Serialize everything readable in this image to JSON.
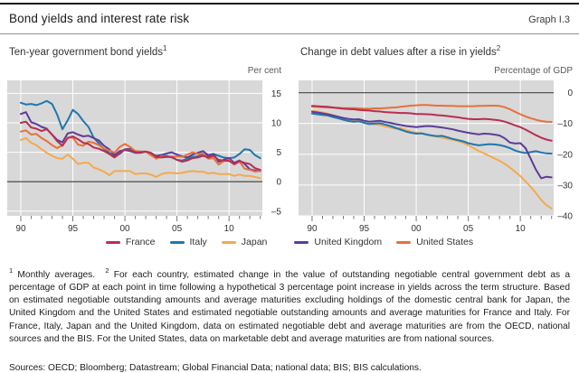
{
  "header": {
    "title": "Bond yields and interest rate risk",
    "graph_label": "Graph I.3"
  },
  "colors": {
    "plot_bg": "#d8d8d8",
    "grid": "#ffffff",
    "zero_line": "#55585a",
    "tick": "#767676",
    "axis_text": "#333333",
    "france": "#b82e51",
    "italy": "#2077ad",
    "japan": "#f5a94e",
    "united_kingdom": "#5c3d99",
    "united_states": "#e8703a"
  },
  "chart_data": [
    {
      "type": "line",
      "title": "Ten-year government bond yields",
      "title_sup": "1",
      "unit_label": "Per cent",
      "ylim": [
        -5.8,
        17.2
      ],
      "yticks": [
        {
          "v": -5,
          "l": "–5"
        },
        {
          "v": 0,
          "l": "0"
        },
        {
          "v": 5,
          "l": "5"
        },
        {
          "v": 10,
          "l": "10"
        },
        {
          "v": 15,
          "l": "15"
        }
      ],
      "zero_line": 0,
      "grid": "on",
      "legend_position": "bottom",
      "xlim": [
        1988.7,
        2013.2
      ],
      "xticks": [
        {
          "v": 1990,
          "l": "90"
        },
        {
          "v": 1995,
          "l": "95"
        },
        {
          "v": 2000,
          "l": "00"
        },
        {
          "v": 2005,
          "l": "05"
        },
        {
          "v": 2010,
          "l": "10"
        }
      ],
      "minor_ticks": {
        "start": 1990,
        "end": 2013,
        "step": 1
      },
      "series": [
        {
          "name": "Italy",
          "color_key": "italy",
          "start": 1990,
          "step": 0.5,
          "values": [
            13.4,
            13.1,
            13.2,
            13.0,
            13.3,
            13.7,
            13.2,
            11.4,
            8.9,
            10.4,
            12.2,
            11.5,
            10.3,
            9.3,
            7.5,
            6.5,
            5.5,
            4.9,
            4.3,
            4.7,
            5.5,
            5.6,
            5.2,
            5.1,
            5.1,
            4.9,
            4.3,
            4.3,
            4.4,
            4.1,
            3.7,
            3.6,
            3.9,
            4.2,
            4.3,
            4.6,
            4.4,
            4.7,
            4.4,
            4.1,
            4.0,
            4.1,
            4.7,
            5.5,
            5.4,
            4.5,
            4.0
          ]
        },
        {
          "name": "Japan",
          "color_key": "japan",
          "start": 1990,
          "step": 0.5,
          "values": [
            7.1,
            7.4,
            6.6,
            6.2,
            5.5,
            4.9,
            4.4,
            4.0,
            3.9,
            4.6,
            3.9,
            3.0,
            3.2,
            3.2,
            2.4,
            2.1,
            1.7,
            1.1,
            1.8,
            1.8,
            1.8,
            1.8,
            1.3,
            1.4,
            1.4,
            1.2,
            0.8,
            1.3,
            1.5,
            1.5,
            1.4,
            1.5,
            1.7,
            1.8,
            1.7,
            1.7,
            1.4,
            1.5,
            1.3,
            1.3,
            1.3,
            1.0,
            1.2,
            1.0,
            1.0,
            0.8,
            0.6
          ]
        },
        {
          "name": "United Kingdom",
          "color_key": "united_kingdom",
          "start": 1990,
          "step": 0.5,
          "values": [
            11.5,
            11.8,
            10.1,
            9.8,
            9.3,
            9.0,
            8.0,
            7.1,
            6.7,
            8.2,
            8.4,
            8.0,
            7.7,
            7.8,
            7.4,
            7.0,
            6.1,
            5.5,
            4.5,
            5.2,
            5.4,
            5.2,
            4.9,
            4.9,
            5.1,
            4.7,
            4.4,
            4.5,
            4.8,
            5.0,
            4.6,
            4.3,
            4.1,
            4.6,
            4.9,
            5.2,
            4.5,
            4.7,
            3.4,
            3.7,
            4.0,
            3.2,
            3.6,
            3.0,
            2.1,
            1.9,
            1.8
          ]
        },
        {
          "name": "United States",
          "color_key": "united_states",
          "start": 1990,
          "step": 0.5,
          "values": [
            8.5,
            8.7,
            8.0,
            8.1,
            7.4,
            6.9,
            6.2,
            5.7,
            6.2,
            7.5,
            7.5,
            6.3,
            6.1,
            6.8,
            6.6,
            6.2,
            5.6,
            5.3,
            4.9,
            5.9,
            6.4,
            5.9,
            5.2,
            5.1,
            5.1,
            4.5,
            3.9,
            4.3,
            4.2,
            4.2,
            4.3,
            4.2,
            4.6,
            5.0,
            4.7,
            4.8,
            3.9,
            4.0,
            2.9,
            3.5,
            3.7,
            2.9,
            3.4,
            2.2,
            2.0,
            1.7,
            1.9
          ]
        },
        {
          "name": "France",
          "color_key": "france",
          "start": 1990,
          "step": 0.5,
          "values": [
            10.0,
            10.2,
            9.2,
            9.0,
            8.6,
            8.9,
            8.0,
            6.9,
            6.1,
            7.4,
            7.7,
            7.2,
            6.6,
            6.4,
            5.8,
            5.6,
            5.2,
            4.7,
            4.1,
            4.8,
            5.5,
            5.4,
            5.0,
            5.0,
            5.1,
            4.9,
            4.2,
            4.1,
            4.2,
            4.2,
            3.7,
            3.4,
            3.6,
            4.0,
            4.1,
            4.4,
            4.1,
            4.4,
            3.7,
            3.6,
            3.5,
            3.0,
            3.5,
            3.2,
            3.0,
            2.3,
            2.0
          ]
        }
      ]
    },
    {
      "type": "line",
      "title": "Change in debt values after a rise in yields",
      "title_sup": "2",
      "unit_label": "Percentage of GDP",
      "ylim": [
        -40,
        4
      ],
      "yticks": [
        {
          "v": 0,
          "l": "0"
        },
        {
          "v": -10,
          "l": "–10"
        },
        {
          "v": -20,
          "l": "–20"
        },
        {
          "v": -30,
          "l": "–30"
        },
        {
          "v": -40,
          "l": "–40"
        }
      ],
      "zero_line": 0,
      "grid": "on",
      "legend_position": "bottom",
      "xlim": [
        1988.7,
        2013.2
      ],
      "xticks": [
        {
          "v": 1990,
          "l": "90"
        },
        {
          "v": 1995,
          "l": "95"
        },
        {
          "v": 2000,
          "l": "00"
        },
        {
          "v": 2005,
          "l": "05"
        },
        {
          "v": 2010,
          "l": "10"
        }
      ],
      "minor_ticks": {
        "start": 1990,
        "end": 2013,
        "step": 1
      },
      "series": [
        {
          "name": "Japan",
          "color_key": "japan",
          "start": 1990,
          "step": 0.5,
          "values": [
            -5.9,
            -6.1,
            -6.4,
            -6.8,
            -7.3,
            -7.8,
            -8.3,
            -8.7,
            -9.0,
            -9.2,
            -9.7,
            -10.1,
            -10.3,
            -10.5,
            -10.9,
            -11.3,
            -11.7,
            -11.5,
            -12.1,
            -12.6,
            -13.0,
            -13.2,
            -13.6,
            -14.0,
            -14.3,
            -14.6,
            -15.0,
            -15.3,
            -15.7,
            -16.3,
            -17.1,
            -18.0,
            -18.9,
            -19.7,
            -20.5,
            -21.3,
            -22.1,
            -23.1,
            -24.3,
            -25.7,
            -27.1,
            -28.8,
            -30.6,
            -32.6,
            -34.8,
            -36.5,
            -37.6
          ]
        },
        {
          "name": "Italy",
          "color_key": "italy",
          "start": 1990,
          "step": 0.5,
          "values": [
            -6.8,
            -7.0,
            -7.2,
            -7.4,
            -7.9,
            -8.3,
            -8.8,
            -9.2,
            -9.4,
            -9.3,
            -9.8,
            -10.2,
            -10.0,
            -9.9,
            -10.3,
            -10.8,
            -11.4,
            -12.0,
            -12.6,
            -13.0,
            -13.3,
            -13.2,
            -13.6,
            -13.9,
            -14.1,
            -14.0,
            -14.5,
            -15.0,
            -15.4,
            -15.8,
            -16.4,
            -16.8,
            -17.1,
            -16.9,
            -16.7,
            -16.8,
            -17.0,
            -17.4,
            -18.0,
            -18.8,
            -19.3,
            -19.6,
            -19.3,
            -19.0,
            -19.4,
            -19.7,
            -19.8
          ]
        },
        {
          "name": "United Kingdom",
          "color_key": "united_kingdom",
          "start": 1990,
          "step": 0.5,
          "values": [
            -6.2,
            -6.4,
            -6.7,
            -7.0,
            -7.4,
            -7.8,
            -8.2,
            -8.5,
            -8.7,
            -8.6,
            -9.1,
            -9.4,
            -9.3,
            -9.1,
            -9.5,
            -9.8,
            -10.2,
            -10.5,
            -10.8,
            -11.0,
            -11.2,
            -11.0,
            -10.8,
            -10.9,
            -11.1,
            -11.3,
            -11.6,
            -11.9,
            -12.3,
            -12.7,
            -13.0,
            -13.3,
            -13.5,
            -13.3,
            -13.4,
            -13.6,
            -13.9,
            -14.8,
            -16.2,
            -16.5,
            -16.4,
            -18.0,
            -21.5,
            -25.0,
            -27.8,
            -27.3,
            -27.5
          ]
        },
        {
          "name": "United States",
          "color_key": "united_states",
          "start": 1990,
          "step": 0.5,
          "values": [
            -4.5,
            -4.6,
            -4.7,
            -4.8,
            -4.9,
            -4.9,
            -5.0,
            -5.0,
            -5.0,
            -5.1,
            -5.2,
            -5.2,
            -5.1,
            -5.1,
            -5.0,
            -4.9,
            -4.8,
            -4.6,
            -4.4,
            -4.2,
            -4.1,
            -4.0,
            -4.0,
            -4.1,
            -4.2,
            -4.2,
            -4.3,
            -4.3,
            -4.4,
            -4.4,
            -4.4,
            -4.4,
            -4.3,
            -4.3,
            -4.2,
            -4.2,
            -4.3,
            -4.7,
            -5.4,
            -6.2,
            -7.0,
            -7.7,
            -8.3,
            -8.8,
            -9.2,
            -9.4,
            -9.5
          ]
        },
        {
          "name": "France",
          "color_key": "france",
          "start": 1990,
          "step": 0.5,
          "values": [
            -4.3,
            -4.4,
            -4.5,
            -4.6,
            -4.8,
            -5.0,
            -5.2,
            -5.3,
            -5.4,
            -5.6,
            -5.7,
            -5.8,
            -6.0,
            -6.1,
            -6.3,
            -6.4,
            -6.5,
            -6.6,
            -6.6,
            -6.7,
            -6.9,
            -6.9,
            -7.0,
            -7.1,
            -7.3,
            -7.4,
            -7.6,
            -7.8,
            -8.0,
            -8.3,
            -8.5,
            -8.6,
            -8.6,
            -8.5,
            -8.6,
            -8.8,
            -9.0,
            -9.4,
            -10.0,
            -10.6,
            -11.2,
            -12.0,
            -12.9,
            -13.8,
            -14.6,
            -15.2,
            -15.6
          ]
        }
      ]
    }
  ],
  "legend": {
    "groups": [
      {
        "items": [
          {
            "label": "France",
            "color_key": "france"
          },
          {
            "label": "Italy",
            "color_key": "italy"
          },
          {
            "label": "Japan",
            "color_key": "japan"
          }
        ]
      },
      {
        "items": [
          {
            "label": "United Kingdom",
            "color_key": "united_kingdom"
          },
          {
            "label": "United States",
            "color_key": "united_states"
          }
        ]
      }
    ]
  },
  "footnotes": [
    {
      "sup": "1",
      "text": "Monthly averages."
    },
    {
      "sup": "2",
      "text": "For each country, estimated change in the value of outstanding negotiable central government debt as a percentage of GDP at each point in time following a hypothetical 3 percentage point increase in yields across the term structure. Based on estimated negotiable outstanding amounts and average maturities excluding holdings of the domestic central bank for Japan, the United Kingdom and the United States and estimated negotiable outstanding amounts and average maturities for France and Italy. For France, Italy, Japan and the United Kingdom, data on estimated negotiable debt and average maturities are from the OECD, national sources and the BIS. For the United States, data on marketable debt and average maturities are from national sources."
    }
  ],
  "sources": "Sources: OECD; Bloomberg; Datastream; Global Financial Data; national data; BIS; BIS calculations."
}
